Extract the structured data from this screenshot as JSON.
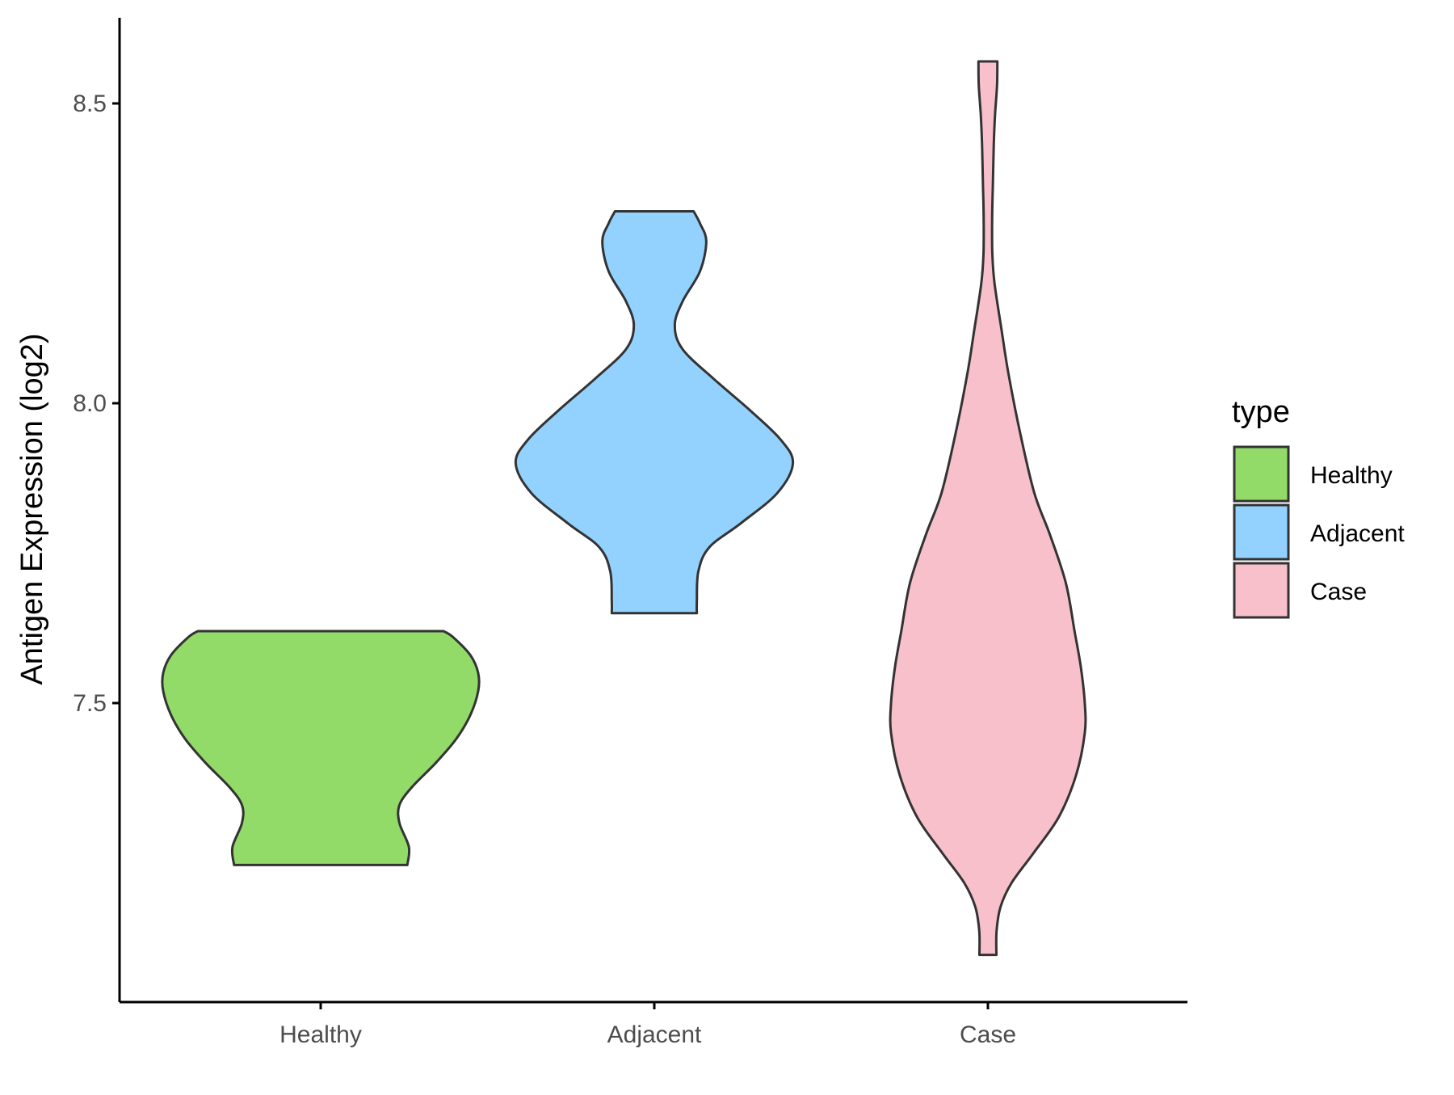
{
  "chart_data": {
    "type": "violin",
    "xlabel": "",
    "ylabel": "Antigen Expression (log2)",
    "categories": [
      "Healthy",
      "Adjacent",
      "Case"
    ],
    "yticks": [
      "7.5",
      "8.0",
      "8.5"
    ],
    "ytick_values": [
      7.5,
      8.0,
      8.5
    ],
    "ylim": [
      7.0,
      8.64
    ],
    "grid": false,
    "legend": {
      "title": "type",
      "position": "right",
      "entries": [
        "Healthy",
        "Adjacent",
        "Case"
      ]
    },
    "series": [
      {
        "category": "Healthy",
        "color": "#93DB69",
        "min": 7.23,
        "max": 7.62,
        "density": [
          [
            7.23,
            0.55
          ],
          [
            7.26,
            0.56
          ],
          [
            7.3,
            0.5
          ],
          [
            7.33,
            0.5
          ],
          [
            7.36,
            0.58
          ],
          [
            7.4,
            0.73
          ],
          [
            7.44,
            0.86
          ],
          [
            7.48,
            0.95
          ],
          [
            7.52,
            1.0
          ],
          [
            7.55,
            1.0
          ],
          [
            7.58,
            0.95
          ],
          [
            7.61,
            0.84
          ],
          [
            7.62,
            0.78
          ]
        ]
      },
      {
        "category": "Adjacent",
        "color": "#93D2FF",
        "min": 7.65,
        "max": 8.32,
        "density": [
          [
            7.65,
            0.27
          ],
          [
            7.67,
            0.27
          ],
          [
            7.72,
            0.28
          ],
          [
            7.76,
            0.35
          ],
          [
            7.8,
            0.55
          ],
          [
            7.85,
            0.78
          ],
          [
            7.9,
            0.88
          ],
          [
            7.94,
            0.8
          ],
          [
            7.99,
            0.6
          ],
          [
            8.04,
            0.38
          ],
          [
            8.09,
            0.18
          ],
          [
            8.13,
            0.13
          ],
          [
            8.17,
            0.18
          ],
          [
            8.22,
            0.29
          ],
          [
            8.27,
            0.33
          ],
          [
            8.3,
            0.29
          ],
          [
            8.32,
            0.25
          ]
        ]
      },
      {
        "category": "Case",
        "color": "#F7C0CB",
        "min": 7.08,
        "max": 8.57,
        "density": [
          [
            7.08,
            0.054
          ],
          [
            7.12,
            0.055
          ],
          [
            7.16,
            0.08
          ],
          [
            7.2,
            0.15
          ],
          [
            7.25,
            0.29
          ],
          [
            7.31,
            0.45
          ],
          [
            7.38,
            0.56
          ],
          [
            7.45,
            0.615
          ],
          [
            7.5,
            0.615
          ],
          [
            7.56,
            0.59
          ],
          [
            7.62,
            0.55
          ],
          [
            7.7,
            0.495
          ],
          [
            7.78,
            0.395
          ],
          [
            7.85,
            0.295
          ],
          [
            7.95,
            0.205
          ],
          [
            8.05,
            0.13
          ],
          [
            8.12,
            0.088
          ],
          [
            8.2,
            0.042
          ],
          [
            8.25,
            0.028
          ],
          [
            8.31,
            0.027
          ],
          [
            8.37,
            0.032
          ],
          [
            8.43,
            0.037
          ],
          [
            8.48,
            0.045
          ],
          [
            8.53,
            0.058
          ],
          [
            8.57,
            0.06
          ]
        ]
      }
    ]
  }
}
